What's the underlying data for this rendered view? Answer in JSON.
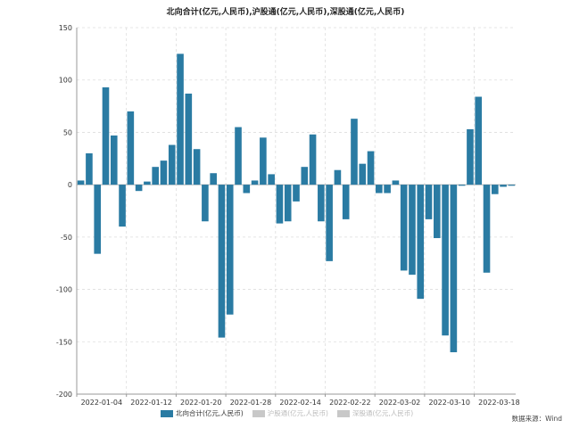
{
  "chart_data": {
    "type": "bar",
    "title": "北向合计(亿元,人民币),沪股通(亿元,人民币),深股通(亿元,人民币)",
    "xlabel": "",
    "ylabel": "",
    "ylim": [
      -200,
      150
    ],
    "yticks": [
      150,
      100,
      50,
      0,
      -50,
      -100,
      -150,
      -200
    ],
    "xtick_labels": [
      "2022-01-04",
      "2022-01-12",
      "2022-01-20",
      "2022-01-28",
      "2022-02-14",
      "2022-02-22",
      "2022-03-02",
      "2022-03-10",
      "2022-03-18"
    ],
    "xtick_indices": [
      0,
      6,
      12,
      18,
      24,
      30,
      36,
      42,
      48
    ],
    "grid": true,
    "legend_position": "bottom",
    "series": [
      {
        "name": "北向合计(亿元,人民币)",
        "color": "#2a7ba3",
        "active": true,
        "values": [
          4,
          30,
          -66,
          93,
          47,
          -40,
          70,
          -6,
          3,
          17,
          23,
          38,
          125,
          87,
          34,
          -35,
          11,
          -146,
          -124,
          55,
          -8,
          4,
          45,
          10,
          -37,
          -35,
          -16,
          17,
          48,
          -35,
          -73,
          14,
          -33,
          63,
          20,
          32,
          -8,
          -8,
          4,
          -82,
          -86,
          -109,
          -33,
          -51,
          -144,
          -160,
          -1,
          53,
          84,
          -84,
          -9,
          -2,
          -1
        ]
      },
      {
        "name": "沪股通(亿元,人民币)",
        "color": "#c8c8c8",
        "active": false,
        "values": []
      },
      {
        "name": "深股通(亿元,人民币)",
        "color": "#c8c8c8",
        "active": false,
        "values": []
      }
    ],
    "source": "数据来源：Wind"
  },
  "colors": {
    "bar": "#2a7ba3",
    "grid": "#dddddd",
    "axis": "#999999",
    "inactive_legend": "#bbbbbb"
  }
}
